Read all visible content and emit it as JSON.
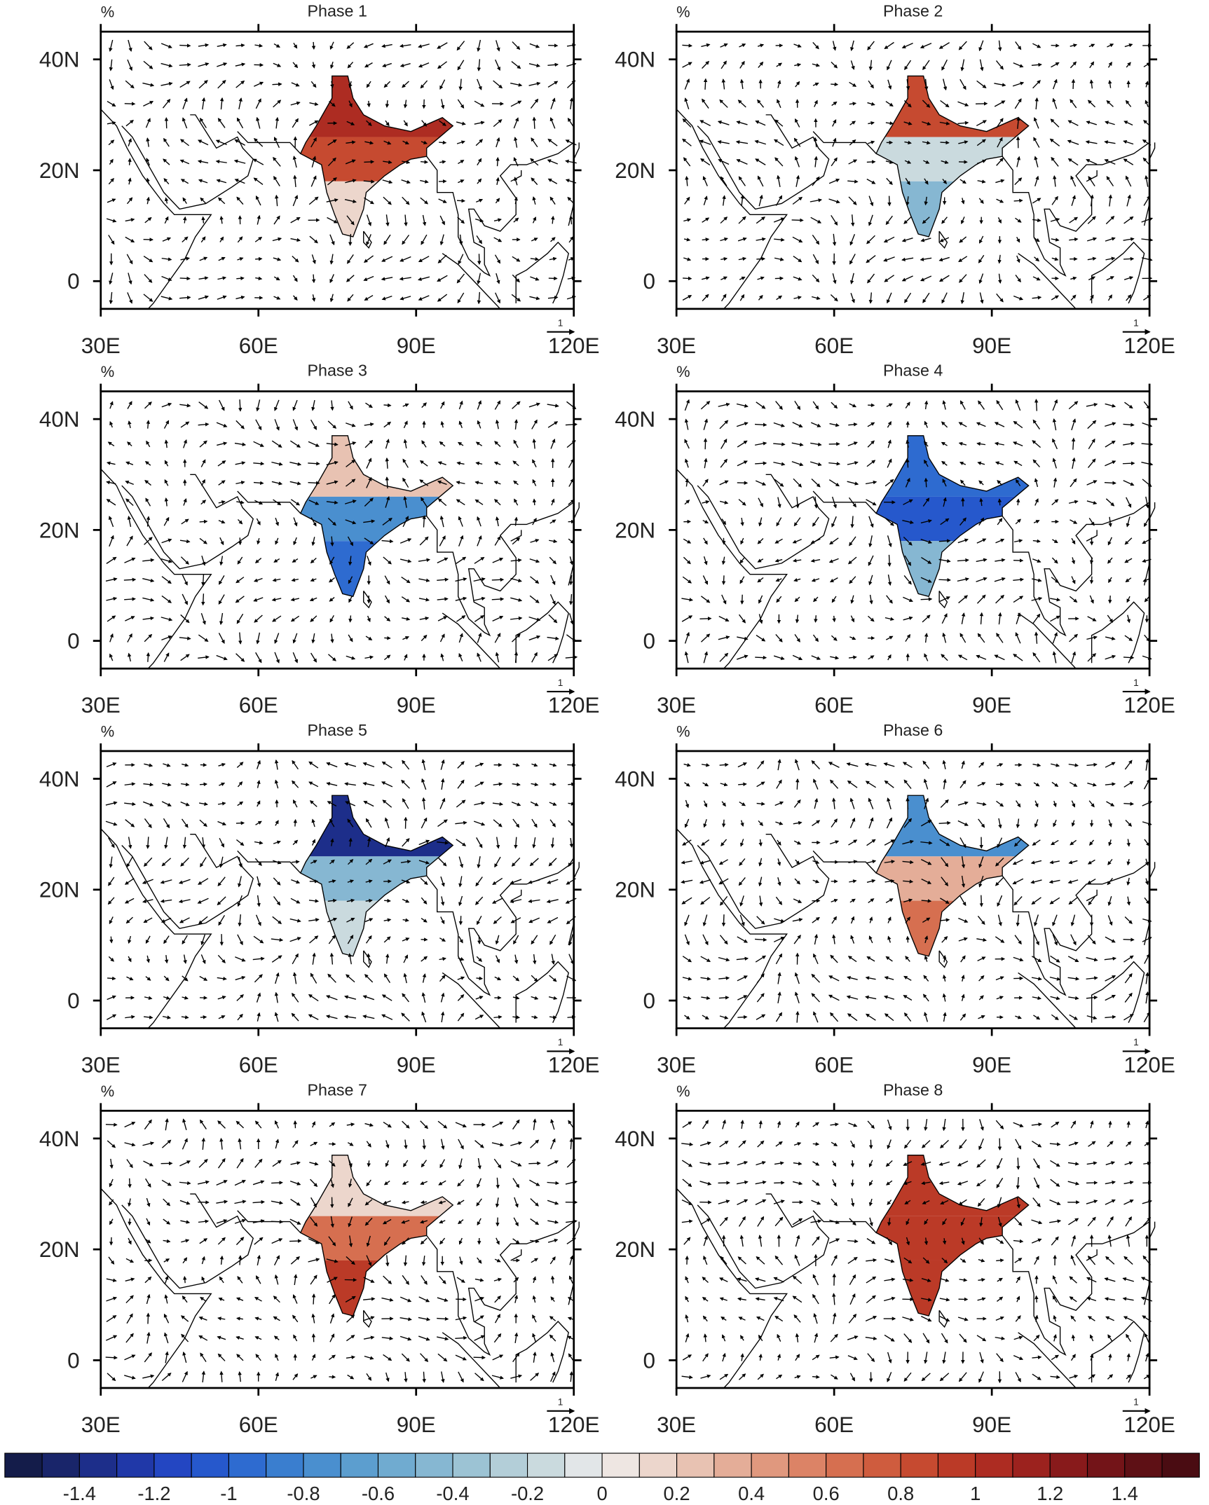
{
  "map_data": {
    "panels": [
      {
        "title": "Phase 1",
        "unit": "%",
        "ref_vector": "1",
        "values": [
          1.0,
          0.8,
          0.1
        ]
      },
      {
        "title": "Phase 2",
        "unit": "%",
        "ref_vector": "1",
        "values": [
          0.8,
          -0.2,
          -0.5
        ]
      },
      {
        "title": "Phase 3",
        "unit": "%",
        "ref_vector": "1",
        "values": [
          0.2,
          -0.8,
          -1.0
        ]
      },
      {
        "title": "Phase 4",
        "unit": "%",
        "ref_vector": "1",
        "values": [
          -1.0,
          -1.1,
          -0.5
        ]
      },
      {
        "title": "Phase 5",
        "unit": "%",
        "ref_vector": "1",
        "values": [
          -1.4,
          -0.5,
          -0.2
        ]
      },
      {
        "title": "Phase 6",
        "unit": "%",
        "ref_vector": "1",
        "values": [
          -0.8,
          0.3,
          0.6
        ]
      },
      {
        "title": "Phase 7",
        "unit": "%",
        "ref_vector": "1",
        "values": [
          0.1,
          0.7,
          0.9
        ]
      },
      {
        "title": "Phase 8",
        "unit": "%",
        "ref_vector": "1",
        "values": [
          0.9,
          0.9,
          0.9
        ]
      }
    ],
    "xlim": [
      30,
      120
    ],
    "xticks": [
      {
        "value": 30,
        "label": "30E"
      },
      {
        "value": 60,
        "label": "60E"
      },
      {
        "value": 90,
        "label": "90E"
      },
      {
        "value": 120,
        "label": "120E"
      }
    ],
    "ylim": [
      -5,
      45
    ],
    "yticks": [
      0,
      {
        "value": 20,
        "label": "20N"
      },
      {
        "value": 40,
        "label": "40N"
      }
    ],
    "colorbar": {
      "lim": [
        -1.6,
        1.6
      ],
      "ticks": [
        -1.4,
        -1.2,
        -1,
        -0.8,
        -0.6,
        -0.4,
        -0.2,
        0,
        0.2,
        0.4,
        0.6,
        0.8,
        1,
        1.2,
        1.4
      ],
      "colors": [
        "#141c4a",
        "#19256a",
        "#1d2e8a",
        "#2038a8",
        "#2346c2",
        "#2658cc",
        "#2e6bd0",
        "#3a7ecf",
        "#4a8fcf",
        "#5c9ecf",
        "#70abd0",
        "#86b7d2",
        "#9cc3d4",
        "#b3ced8",
        "#cadade",
        "#e2e6e8",
        "#eee6e2",
        "#ecd6cc",
        "#e8c2b2",
        "#e4ad98",
        "#e0987e",
        "#dc8366",
        "#d66f50",
        "#cf5c3e",
        "#c64a30",
        "#bb3a27",
        "#ad2c22",
        "#9c221e",
        "#881a1b",
        "#731418",
        "#5e1015",
        "#4a0c12"
      ]
    }
  }
}
